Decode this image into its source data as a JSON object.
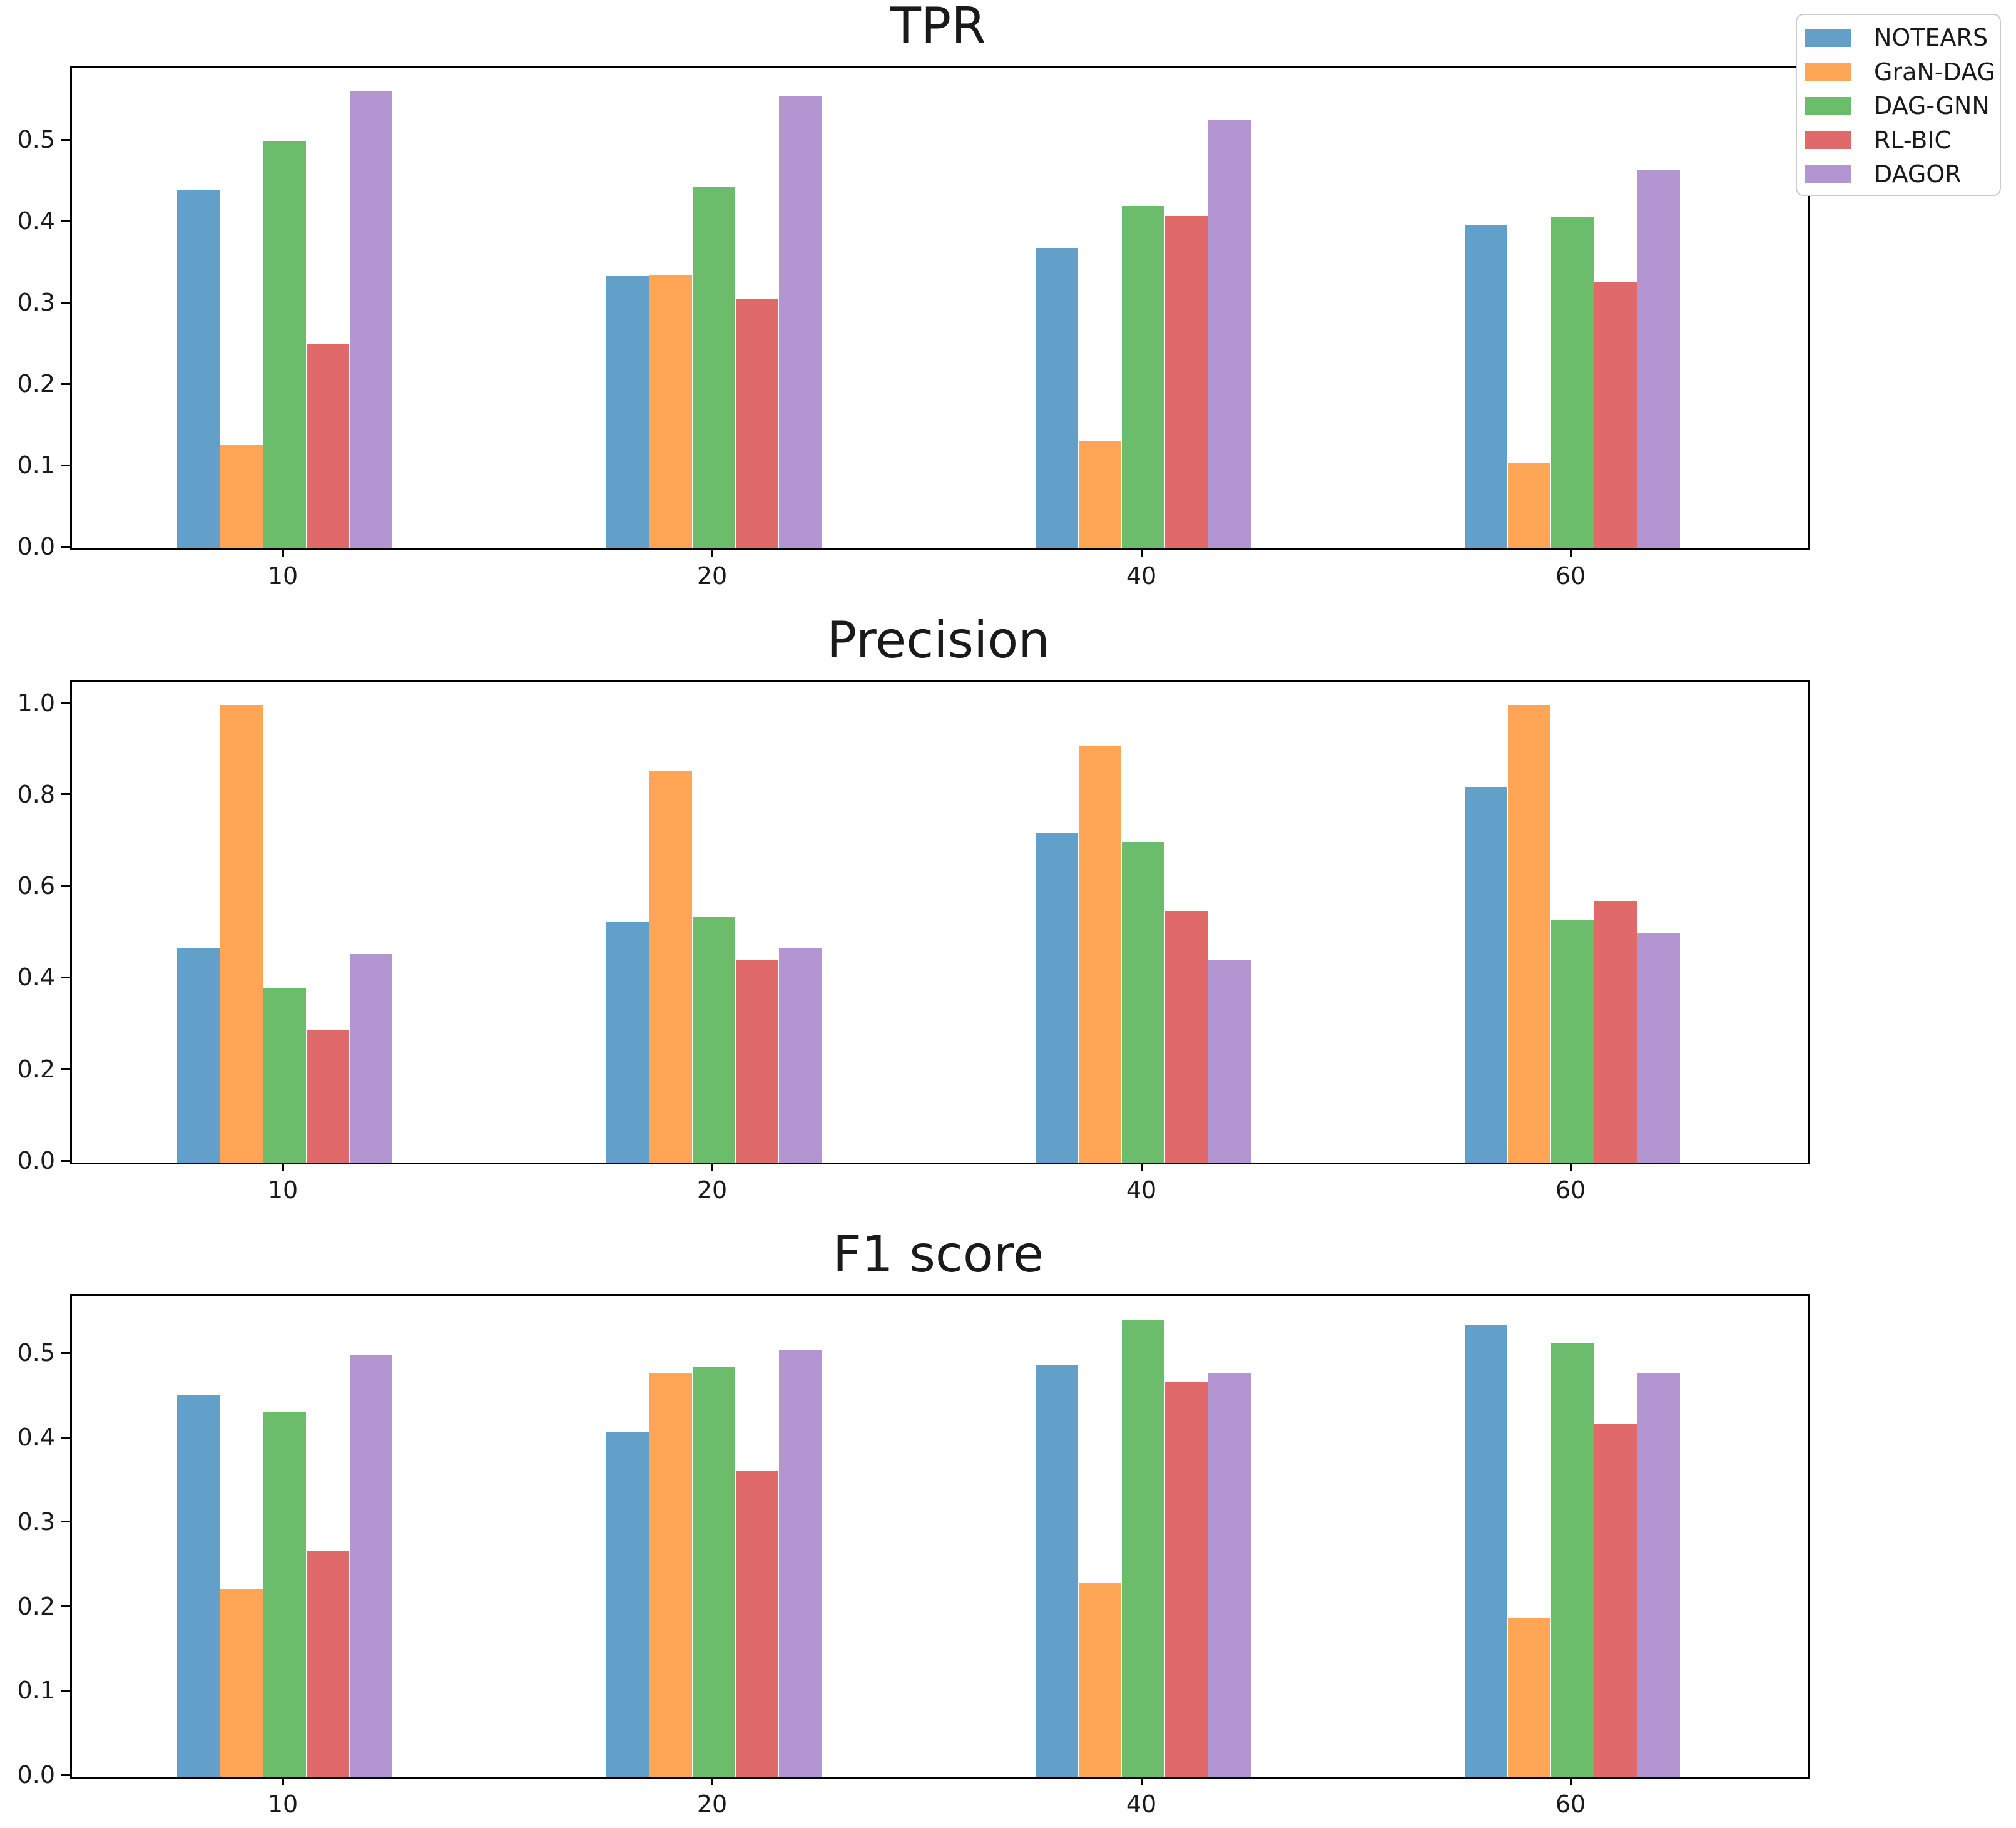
{
  "legend": {
    "items": [
      {
        "label": "NOTEARS",
        "color": "#62A0CA"
      },
      {
        "label": "GraN-DAG",
        "color": "#FFA556"
      },
      {
        "label": "DAG-GNN",
        "color": "#6BBC6B"
      },
      {
        "label": "RL-BIC",
        "color": "#E06A6A"
      },
      {
        "label": "DAGOR",
        "color": "#B295D1"
      }
    ]
  },
  "chart_data": [
    {
      "type": "bar",
      "title": "TPR",
      "xlabel": "",
      "ylabel": "",
      "grid": false,
      "legend_position": "upper right outside",
      "categories": [
        "10",
        "20",
        "40",
        "60"
      ],
      "series": [
        {
          "name": "NOTEARS",
          "color": "#62A0CA",
          "values": [
            0.44,
            0.335,
            0.369,
            0.398
          ]
        },
        {
          "name": "GraN-DAG",
          "color": "#FFA556",
          "values": [
            0.127,
            0.336,
            0.132,
            0.105
          ]
        },
        {
          "name": "DAG-GNN",
          "color": "#6BBC6B",
          "values": [
            0.501,
            0.445,
            0.421,
            0.407
          ]
        },
        {
          "name": "RL-BIC",
          "color": "#E06A6A",
          "values": [
            0.252,
            0.307,
            0.409,
            0.328
          ]
        },
        {
          "name": "DAGOR",
          "color": "#B295D1",
          "values": [
            0.562,
            0.556,
            0.527,
            0.465
          ]
        }
      ],
      "ylim": [
        0,
        0.591
      ],
      "yticks": [
        0.0,
        0.1,
        0.2,
        0.3,
        0.4,
        0.5
      ],
      "ytick_labels": [
        "0.0",
        "0.1",
        "0.2",
        "0.3",
        "0.4",
        "0.5"
      ]
    },
    {
      "type": "bar",
      "title": "Precision",
      "xlabel": "",
      "ylabel": "",
      "grid": false,
      "categories": [
        "10",
        "20",
        "40",
        "60"
      ],
      "series": [
        {
          "name": "NOTEARS",
          "color": "#62A0CA",
          "values": [
            0.468,
            0.525,
            0.72,
            0.82
          ]
        },
        {
          "name": "GraN-DAG",
          "color": "#FFA556",
          "values": [
            1.0,
            0.856,
            0.91,
            1.0
          ]
        },
        {
          "name": "DAG-GNN",
          "color": "#6BBC6B",
          "values": [
            0.382,
            0.536,
            0.7,
            0.53
          ]
        },
        {
          "name": "RL-BIC",
          "color": "#E06A6A",
          "values": [
            0.29,
            0.441,
            0.548,
            0.57
          ]
        },
        {
          "name": "DAGOR",
          "color": "#B295D1",
          "values": [
            0.455,
            0.468,
            0.441,
            0.5
          ]
        }
      ],
      "ylim": [
        0,
        1.05
      ],
      "yticks": [
        0.0,
        0.2,
        0.4,
        0.6,
        0.8,
        1.0
      ],
      "ytick_labels": [
        "0.0",
        "0.2",
        "0.4",
        "0.6",
        "0.8",
        "1.0"
      ]
    },
    {
      "type": "bar",
      "title": "F1 score",
      "xlabel": "",
      "ylabel": "",
      "grid": false,
      "categories": [
        "10",
        "20",
        "40",
        "60"
      ],
      "series": [
        {
          "name": "NOTEARS",
          "color": "#62A0CA",
          "values": [
            0.452,
            0.408,
            0.488,
            0.535
          ]
        },
        {
          "name": "GraN-DAG",
          "color": "#FFA556",
          "values": [
            0.222,
            0.479,
            0.23,
            0.188
          ]
        },
        {
          "name": "DAG-GNN",
          "color": "#6BBC6B",
          "values": [
            0.433,
            0.486,
            0.542,
            0.514
          ]
        },
        {
          "name": "RL-BIC",
          "color": "#E06A6A",
          "values": [
            0.268,
            0.362,
            0.468,
            0.418
          ]
        },
        {
          "name": "DAGOR",
          "color": "#B295D1",
          "values": [
            0.5,
            0.506,
            0.479,
            0.479
          ]
        }
      ],
      "ylim": [
        0,
        0.57
      ],
      "yticks": [
        0.0,
        0.1,
        0.2,
        0.3,
        0.4,
        0.5
      ],
      "ytick_labels": [
        "0.0",
        "0.1",
        "0.2",
        "0.3",
        "0.4",
        "0.5"
      ]
    }
  ]
}
